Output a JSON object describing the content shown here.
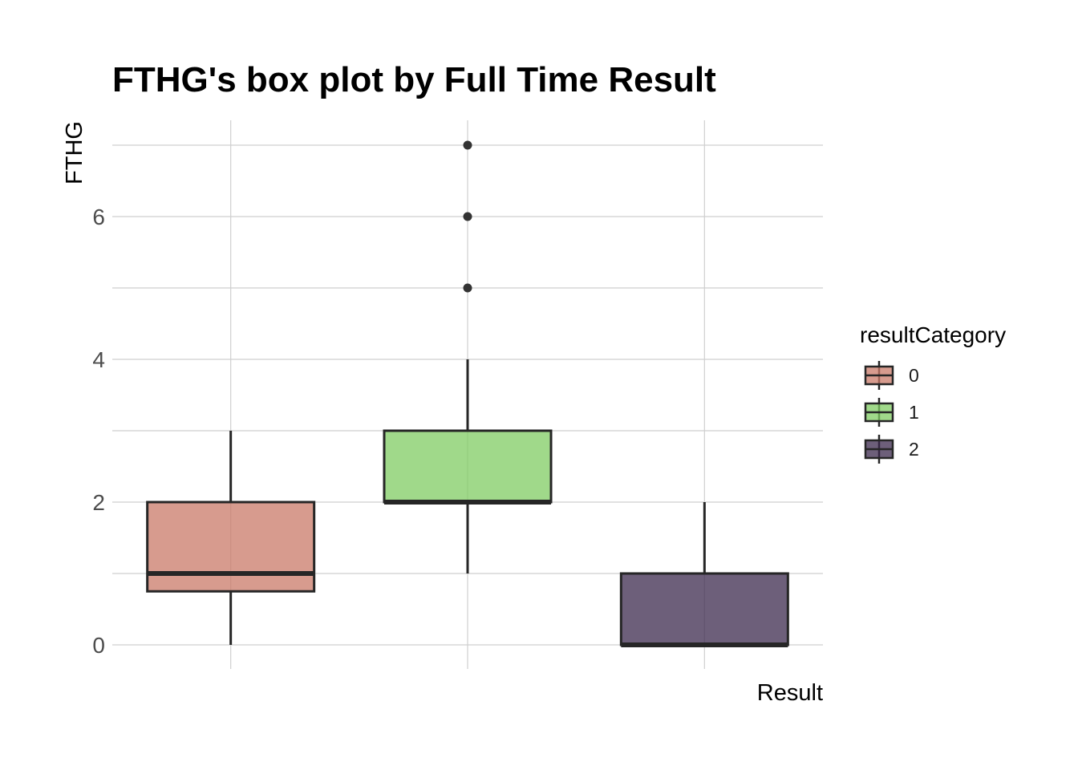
{
  "chart_data": {
    "type": "box",
    "title": "FTHG's box plot by Full Time Result",
    "xlabel": "Result",
    "ylabel": "FTHG",
    "ylim": [
      -0.7,
      7.7
    ],
    "yticks": [
      0,
      2,
      4,
      6
    ],
    "grid": true,
    "legend": {
      "title": "resultCategory",
      "position": "right"
    },
    "series": [
      {
        "name": "0",
        "color": "#c97a68",
        "whisker_low": 0,
        "q1": 0.75,
        "median": 1,
        "q3": 2,
        "whisker_high": 3,
        "outliers": []
      },
      {
        "name": "1",
        "color": "#80cc63",
        "whisker_low": 1,
        "q1": 2,
        "median": 2,
        "q3": 3,
        "whisker_high": 4,
        "outliers": [
          5,
          6,
          7
        ]
      },
      {
        "name": "2",
        "color": "#3c2a4d",
        "whisker_low": 0,
        "q1": 0,
        "median": 0,
        "q3": 1,
        "whisker_high": 2,
        "outliers": []
      }
    ]
  }
}
